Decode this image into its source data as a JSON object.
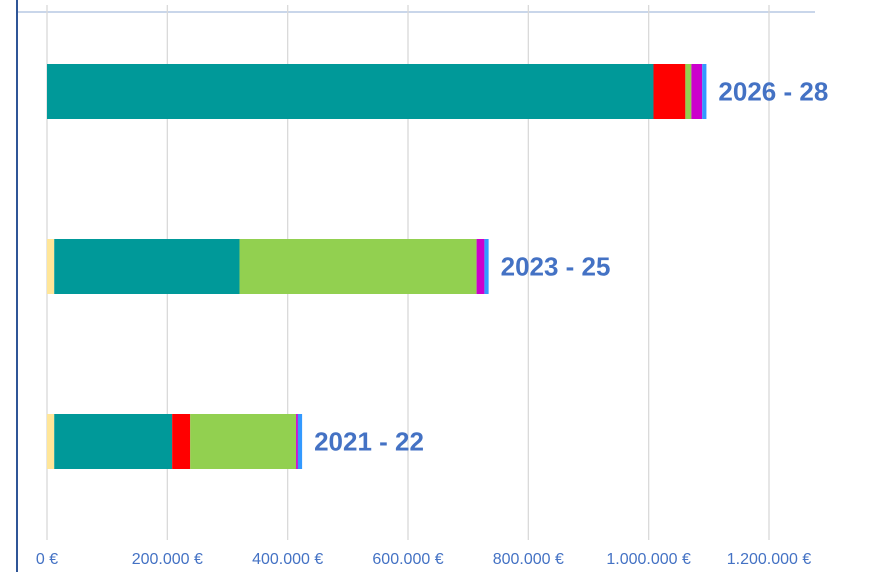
{
  "chart_data": {
    "type": "stacked_barh",
    "categories": [
      "2021 - 22",
      "2023 - 25",
      "2026 - 28"
    ],
    "series": [
      {
        "color": "#ffe699",
        "values": [
          12000,
          12000,
          0
        ]
      },
      {
        "color": "#009999",
        "values": [
          196000,
          308000,
          1008000
        ]
      },
      {
        "color": "#ff0000",
        "values": [
          30000,
          0,
          53000
        ]
      },
      {
        "color": "#92d050",
        "values": [
          176000,
          394000,
          10000
        ]
      },
      {
        "color": "#cc00cc",
        "values": [
          3000,
          13000,
          18000
        ]
      },
      {
        "color": "#3399ff",
        "values": [
          7000,
          7000,
          7000
        ]
      }
    ],
    "xlim": [
      0,
      1200000
    ],
    "xticks": [
      {
        "value": 0,
        "label": "0 €"
      },
      {
        "value": 200000,
        "label": "200.000 €"
      },
      {
        "value": 400000,
        "label": "400.000 €"
      },
      {
        "value": 600000,
        "label": "600.000 €"
      },
      {
        "value": 800000,
        "label": "800.000 €"
      },
      {
        "value": 1000000,
        "label": "1.000.000 €"
      },
      {
        "value": 1200000,
        "label": "1.200.000 €"
      }
    ],
    "grid": true
  }
}
